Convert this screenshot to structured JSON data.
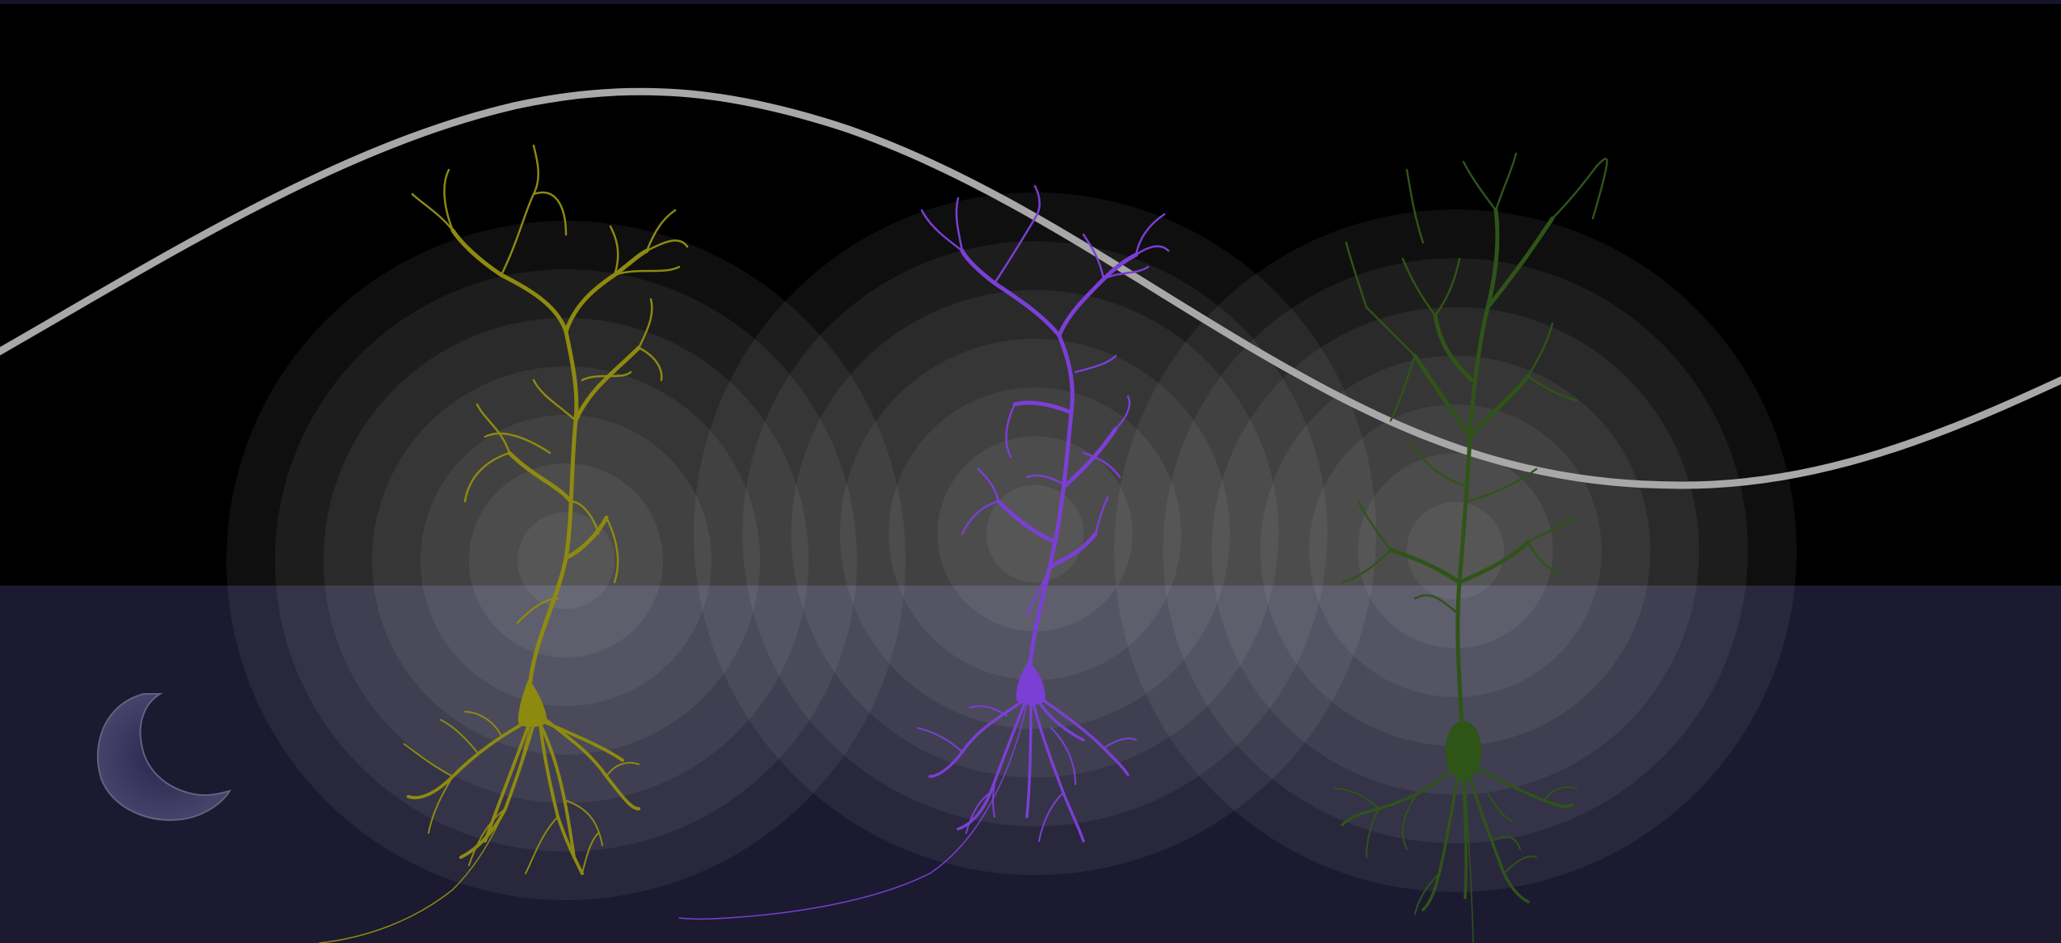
{
  "colors": {
    "background_top": "#000000",
    "background_bottom": "#1c1a30",
    "top_border": "#15142a",
    "wave": "#a8a8a8",
    "neuron_left": "#8e8a10",
    "neuron_middle": "#7b3fd6",
    "neuron_right": "#2f5418",
    "ring": "#ffffff",
    "loader_arc": "#3a3660"
  },
  "icons": {
    "loader": "crescent-loader-icon",
    "neurons": "pyramidal-neuron-icon"
  },
  "scene": {
    "neurons": [
      {
        "id": "left",
        "color_key": "neuron_left"
      },
      {
        "id": "middle",
        "color_key": "neuron_middle"
      },
      {
        "id": "right",
        "color_key": "neuron_right"
      }
    ]
  }
}
